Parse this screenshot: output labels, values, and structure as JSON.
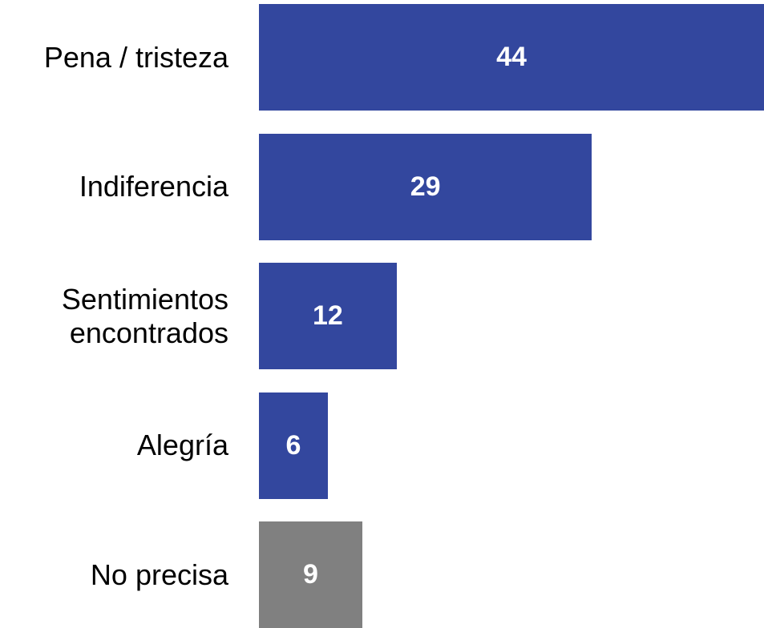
{
  "chart_data": {
    "type": "bar",
    "orientation": "horizontal",
    "categories": [
      "Pena / tristeza",
      "Indiferencia",
      "Sentimientos\nencontrados",
      "Alegría",
      "No precisa"
    ],
    "values": [
      44,
      29,
      12,
      6,
      9
    ],
    "colors": [
      "#33479e",
      "#33479e",
      "#33479e",
      "#33479e",
      "#808080"
    ]
  }
}
